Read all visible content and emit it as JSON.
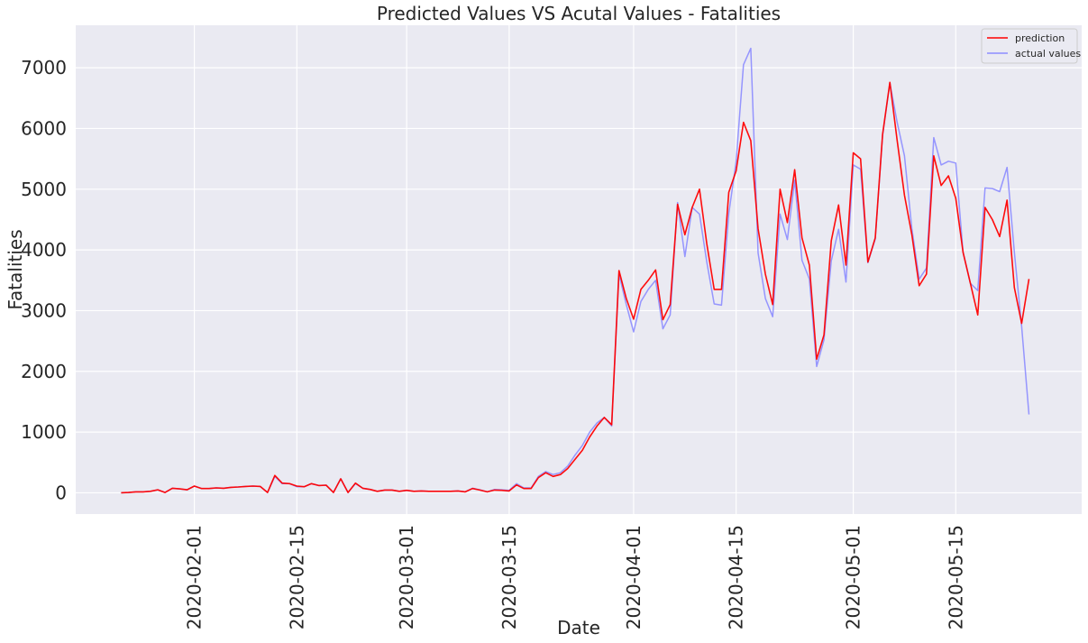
{
  "chart_data": {
    "type": "line",
    "title": "Predicted Values VS Acutal Values - Fatalities",
    "xlabel": "Date",
    "ylabel": "Fatalities",
    "x_start": "2020-01-22",
    "x_end": "2020-05-26",
    "x_tick_labels": [
      "2020-02-01",
      "2020-02-15",
      "2020-03-01",
      "2020-03-15",
      "2020-04-01",
      "2020-04-15",
      "2020-05-01",
      "2020-05-15"
    ],
    "ylim": [
      -350,
      7700
    ],
    "y_ticks": [
      0,
      1000,
      2000,
      3000,
      4000,
      5000,
      6000,
      7000
    ],
    "grid": true,
    "legend_position": "top-right",
    "series": [
      {
        "name": "prediction",
        "color": "#ff0000",
        "values": [
          0,
          5,
          15,
          15,
          25,
          50,
          5,
          75,
          65,
          50,
          110,
          70,
          70,
          80,
          75,
          90,
          95,
          105,
          110,
          105,
          5,
          285,
          160,
          150,
          110,
          100,
          150,
          120,
          125,
          5,
          230,
          5,
          160,
          75,
          55,
          25,
          45,
          45,
          25,
          40,
          25,
          30,
          25,
          25,
          25,
          25,
          30,
          15,
          70,
          45,
          15,
          45,
          40,
          30,
          130,
          70,
          70,
          250,
          330,
          270,
          300,
          400,
          550,
          700,
          920,
          1100,
          1240,
          1120,
          3660,
          3200,
          2860,
          3350,
          3500,
          3670,
          2850,
          3100,
          4750,
          4250,
          4700,
          5000,
          4100,
          3350,
          3350,
          4950,
          5300,
          6100,
          5800,
          4350,
          3600,
          3100,
          5000,
          4450,
          5320,
          4200,
          3750,
          2200,
          2600,
          4150,
          4740,
          3750,
          5600,
          5500,
          3800,
          4200,
          5900,
          6760,
          5800,
          4900,
          4250,
          3410,
          3600,
          5550,
          5060,
          5220,
          4850,
          3960,
          3450,
          2930,
          4700,
          4500,
          4220,
          4820,
          3380,
          2790,
          3520
        ]
      },
      {
        "name": "actual values",
        "color": "#8c8cff",
        "values": [
          0,
          5,
          15,
          15,
          25,
          50,
          5,
          75,
          65,
          50,
          110,
          70,
          70,
          80,
          75,
          90,
          95,
          105,
          110,
          105,
          5,
          270,
          150,
          150,
          100,
          100,
          150,
          120,
          125,
          5,
          230,
          5,
          150,
          75,
          55,
          25,
          45,
          45,
          25,
          40,
          25,
          30,
          25,
          25,
          25,
          25,
          30,
          15,
          75,
          50,
          15,
          55,
          50,
          40,
          150,
          80,
          80,
          270,
          350,
          300,
          330,
          440,
          620,
          780,
          1000,
          1150,
          1240,
          1100,
          3600,
          3100,
          2650,
          3150,
          3350,
          3500,
          2700,
          2930,
          4780,
          3890,
          4700,
          4590,
          3800,
          3110,
          3090,
          4600,
          5450,
          7050,
          7320,
          3950,
          3200,
          2900,
          4590,
          4170,
          5150,
          3830,
          3520,
          2080,
          2520,
          3820,
          4340,
          3470,
          5400,
          5330,
          3790,
          4180,
          5880,
          6750,
          6100,
          5550,
          4350,
          3520,
          3700,
          5850,
          5400,
          5460,
          5430,
          3960,
          3450,
          3330,
          5020,
          5010,
          4960,
          5360,
          3960,
          2740,
          1290
        ]
      }
    ]
  }
}
